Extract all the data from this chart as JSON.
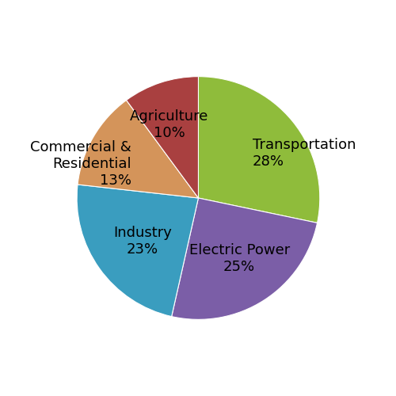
{
  "sectors": [
    "Transportation",
    "Electric Power",
    "Industry",
    "Commercial &\nResidential",
    "Agriculture"
  ],
  "values": [
    28,
    25,
    23,
    13,
    10
  ],
  "colors": [
    "#8fbc3b",
    "#7b5ea7",
    "#3a9dbf",
    "#d4945a",
    "#a94040"
  ],
  "startangle": 90,
  "figsize": [
    5.0,
    5.0
  ],
  "dpi": 100,
  "bg_color": "#ffffff",
  "label_fontsize": 13,
  "label_configs": [
    {
      "ha": "left",
      "va": "center",
      "r": 0.58
    },
    {
      "ha": "center",
      "va": "center",
      "r": 0.6
    },
    {
      "ha": "center",
      "va": "center",
      "r": 0.58
    },
    {
      "ha": "right",
      "va": "center",
      "r": 0.62
    },
    {
      "ha": "center",
      "va": "center",
      "r": 0.65
    }
  ]
}
